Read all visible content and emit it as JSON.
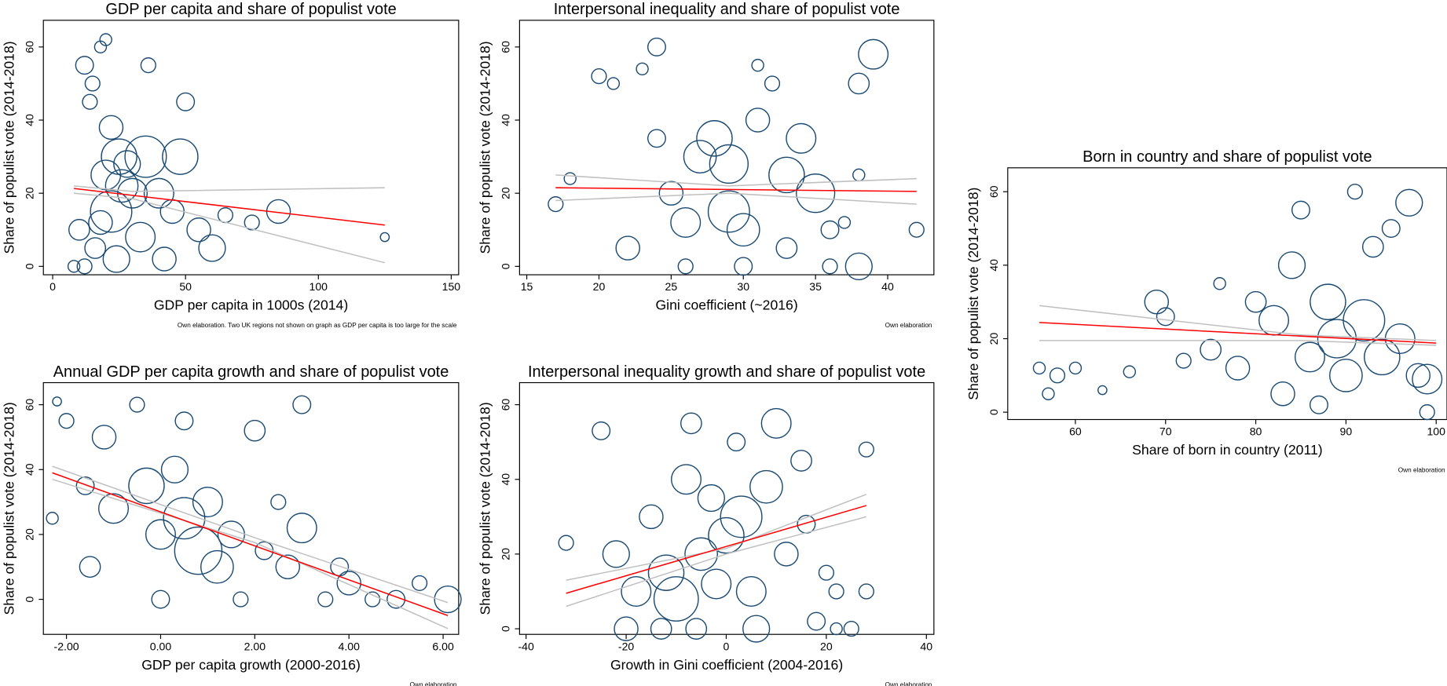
{
  "chart_data": [
    {
      "type": "scatter",
      "title": "GDP per capita and share of populist vote",
      "x_label": "GDP per capita in 1000s (2014)",
      "y_label": "Share of populist vote (2014-2018)",
      "note": "Own elaboration. Two UK regions not shown on graph as GDP per capita is too large for the scale",
      "color": "#1a4a72",
      "x": [
        12,
        15,
        18,
        14,
        22,
        25,
        20,
        28,
        35,
        30,
        18,
        10,
        8,
        12,
        40,
        48,
        50,
        45,
        55,
        65,
        75,
        85,
        125,
        22,
        26,
        16,
        33,
        36,
        60,
        20,
        24,
        42
      ],
      "values": [
        55,
        50,
        60,
        45,
        38,
        30,
        25,
        28,
        30,
        20,
        12,
        10,
        0,
        0,
        20,
        30,
        45,
        15,
        10,
        14,
        12,
        15,
        8,
        15,
        22,
        5,
        8,
        55,
        5,
        62,
        2,
        2
      ],
      "sizes": [
        6,
        5,
        4,
        5,
        8,
        12,
        10,
        9,
        14,
        10,
        8,
        7,
        4,
        5,
        10,
        12,
        6,
        8,
        8,
        5,
        5,
        8,
        3,
        14,
        11,
        7,
        10,
        5,
        9,
        4,
        9,
        8
      ],
      "fit_line": {
        "color": "#ff0000",
        "x": [
          8,
          125
        ],
        "values": [
          21.3,
          11.3
        ]
      },
      "ci_upper": {
        "color": "#c0c0c0",
        "x": [
          8,
          30,
          125
        ],
        "values": [
          22,
          20.5,
          21.5
        ]
      },
      "ci_lower": {
        "color": "#c0c0c0",
        "x": [
          8,
          30,
          125
        ],
        "values": [
          20,
          18.5,
          1
        ]
      },
      "xlim": [
        -3.5,
        152.8
      ],
      "ylim": [
        -2.3,
        67.3
      ],
      "xticks": [
        0,
        50,
        100,
        150
      ],
      "yticks": [
        0,
        20,
        40,
        60
      ]
    },
    {
      "type": "scatter",
      "title": "Interpersonal inequality and share of populist vote",
      "x_label": "Gini coefficient (~2016)",
      "y_label": "Share of populist vote (2014-2018)",
      "note": "Own elaboration",
      "color": "#1a4a72",
      "x": [
        17,
        18,
        20,
        21,
        23,
        24,
        25,
        26,
        27,
        28,
        29,
        30,
        30,
        31,
        32,
        33,
        34,
        35,
        36,
        36,
        38,
        38,
        39,
        42,
        22,
        26,
        29,
        31,
        33,
        37,
        38,
        24
      ],
      "values": [
        17,
        24,
        52,
        50,
        54,
        60,
        20,
        12,
        30,
        35,
        15,
        10,
        0,
        55,
        50,
        25,
        35,
        20,
        0,
        10,
        50,
        0,
        58,
        10,
        5,
        0,
        28,
        40,
        5,
        12,
        25,
        35
      ],
      "sizes": [
        5,
        4,
        5,
        4,
        4,
        6,
        8,
        10,
        11,
        12,
        14,
        11,
        6,
        4,
        5,
        12,
        10,
        13,
        5,
        6,
        7,
        9,
        10,
        5,
        8,
        5,
        13,
        8,
        7,
        4,
        4,
        6
      ],
      "fit_line": {
        "color": "#ff0000",
        "x": [
          17,
          42
        ],
        "values": [
          21.5,
          20.5
        ]
      },
      "ci_upper": {
        "color": "#c0c0c0",
        "x": [
          17,
          29,
          42
        ],
        "values": [
          25,
          22,
          24
        ]
      },
      "ci_lower": {
        "color": "#c0c0c0",
        "x": [
          17,
          29,
          42
        ],
        "values": [
          18,
          20,
          17
        ]
      },
      "xlim": [
        14.5,
        43.2
      ],
      "ylim": [
        -2.3,
        67.3
      ],
      "xticks": [
        15,
        20,
        25,
        30,
        35,
        40
      ],
      "yticks": [
        0,
        20,
        40,
        60
      ]
    },
    {
      "type": "scatter",
      "title": "Born in country and share of populist vote",
      "x_label": "Share of born in country (2011)",
      "y_label": "Share of populist vote (2014-2018)",
      "note": "Own elaboration",
      "color": "#1a4a72",
      "x": [
        56,
        57,
        58,
        60,
        63,
        66,
        69,
        70,
        72,
        75,
        78,
        80,
        82,
        84,
        85,
        86,
        88,
        89,
        90,
        91,
        92,
        93,
        94,
        95,
        96,
        97,
        98,
        99,
        99,
        87,
        83,
        76
      ],
      "values": [
        12,
        5,
        10,
        12,
        6,
        11,
        30,
        26,
        14,
        17,
        12,
        30,
        25,
        40,
        55,
        15,
        30,
        20,
        10,
        60,
        25,
        45,
        15,
        50,
        20,
        57,
        10,
        9,
        0,
        2,
        5,
        35
      ],
      "sizes": [
        4,
        4,
        5,
        4,
        3,
        4,
        8,
        6,
        5,
        7,
        8,
        7,
        10,
        9,
        6,
        10,
        12,
        13,
        11,
        5,
        14,
        7,
        12,
        6,
        10,
        9,
        8,
        10,
        5,
        6,
        8,
        4
      ],
      "fit_line": {
        "color": "#ff0000",
        "x": [
          56,
          100
        ],
        "values": [
          24.4,
          18.8
        ]
      },
      "ci_upper": {
        "color": "#c0c0c0",
        "x": [
          56,
          85,
          100
        ],
        "values": [
          29,
          21,
          19.5
        ]
      },
      "ci_lower": {
        "color": "#c0c0c0",
        "x": [
          56,
          85,
          100
        ],
        "values": [
          19.5,
          19.5,
          18.2
        ]
      },
      "xlim": [
        52.5,
        101.2
      ],
      "ylim": [
        -2,
        66.5
      ],
      "xticks": [
        60,
        70,
        80,
        90,
        100
      ],
      "yticks": [
        0,
        20,
        40,
        60
      ]
    },
    {
      "type": "scatter",
      "title": "Annual GDP per capita growth and share of populist vote",
      "x_label": "GDP per capita growth (2000-2016)",
      "y_label": "Share of populist vote (2014-2018)",
      "note": "Own elaboration",
      "color": "#1a4a72",
      "x": [
        -2.3,
        -2.2,
        -2,
        -1.6,
        -1.2,
        -1,
        -0.5,
        -0.3,
        0,
        0,
        0.3,
        0.5,
        0.8,
        1,
        1.2,
        1.5,
        2,
        2.2,
        2.7,
        3,
        3,
        3.5,
        3.8,
        4,
        4.5,
        5,
        5.5,
        6.1,
        -1.5,
        0.5,
        1.7,
        2.5
      ],
      "values": [
        25,
        61,
        55,
        35,
        50,
        28,
        60,
        35,
        20,
        0,
        40,
        25,
        15,
        30,
        10,
        20,
        52,
        15,
        10,
        60,
        22,
        0,
        10,
        5,
        0,
        0,
        5,
        0,
        10,
        55,
        0,
        30
      ],
      "sizes": [
        4,
        3,
        5,
        6,
        8,
        10,
        5,
        12,
        10,
        6,
        9,
        14,
        16,
        10,
        11,
        9,
        7,
        6,
        8,
        6,
        10,
        5,
        6,
        8,
        5,
        6,
        5,
        9,
        7,
        6,
        5,
        5
      ],
      "fit_line": {
        "color": "#ff0000",
        "x": [
          -2.3,
          6.1
        ],
        "values": [
          39,
          -5
        ]
      },
      "ci_upper": {
        "color": "#c0c0c0",
        "x": [
          -2.3,
          2,
          6.1
        ],
        "values": [
          41,
          19,
          -1
        ]
      },
      "ci_lower": {
        "color": "#c0c0c0",
        "x": [
          -2.3,
          2,
          6.1
        ],
        "values": [
          37,
          17.5,
          -9
        ]
      },
      "xlim": [
        -2.49,
        6.33
      ],
      "ylim": [
        -10.8,
        66.8
      ],
      "xticks": [
        {
          "value": -2,
          "label": "-2.00"
        },
        {
          "value": 0,
          "label": "0.00"
        },
        {
          "value": 2,
          "label": "2.00"
        },
        {
          "value": 4,
          "label": "4.00"
        },
        {
          "value": 6,
          "label": "6.00"
        }
      ],
      "yticks": [
        0,
        20,
        40,
        60
      ]
    },
    {
      "type": "scatter",
      "title": "Interpersonal inequality growth and share of populist vote",
      "x_label": "Growth in Gini coefficient (2004-2016)",
      "y_label": "Share of populist vote (2014-2018)",
      "note": "Own elaboration",
      "color": "#1a4a72",
      "x": [
        -32,
        -25,
        -22,
        -20,
        -18,
        -15,
        -13,
        -12,
        -10,
        -8,
        -7,
        -5,
        -3,
        -2,
        0,
        2,
        3,
        5,
        8,
        10,
        12,
        15,
        16,
        18,
        20,
        22,
        22,
        28,
        28,
        -6,
        6,
        25
      ],
      "values": [
        23,
        53,
        20,
        0,
        10,
        30,
        0,
        15,
        8,
        40,
        55,
        20,
        35,
        12,
        25,
        50,
        30,
        10,
        38,
        55,
        20,
        45,
        28,
        2,
        15,
        10,
        0,
        48,
        10,
        0,
        0,
        0
      ],
      "sizes": [
        5,
        6,
        9,
        8,
        10,
        8,
        7,
        12,
        15,
        10,
        7,
        11,
        9,
        10,
        12,
        6,
        14,
        10,
        11,
        10,
        8,
        7,
        6,
        6,
        5,
        5,
        4,
        5,
        5,
        7,
        9,
        5
      ],
      "fit_line": {
        "color": "#ff0000",
        "x": [
          -32,
          28
        ],
        "values": [
          9.5,
          33
        ]
      },
      "ci_upper": {
        "color": "#c0c0c0",
        "x": [
          -32,
          0,
          28
        ],
        "values": [
          13,
          21.5,
          36
        ]
      },
      "ci_lower": {
        "color": "#c0c0c0",
        "x": [
          -32,
          0,
          28
        ],
        "values": [
          6,
          20,
          30
        ]
      },
      "xlim": [
        -41.3,
        41.5
      ],
      "ylim": [
        -1.5,
        65.9
      ],
      "xticks": [
        -40,
        -20,
        0,
        20,
        40
      ],
      "yticks": [
        0,
        20,
        40,
        60
      ]
    }
  ]
}
